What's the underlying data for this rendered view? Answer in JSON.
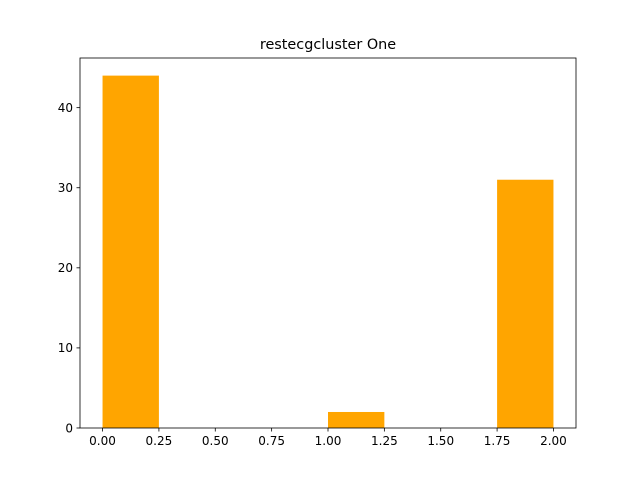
{
  "chart_data": {
    "type": "bar",
    "title": "restecgcluster One",
    "xlabel": "",
    "ylabel": "",
    "bins": [
      {
        "start": 0.0,
        "end": 0.25,
        "count": 44
      },
      {
        "start": 0.25,
        "end": 0.5,
        "count": 0
      },
      {
        "start": 0.5,
        "end": 0.75,
        "count": 0
      },
      {
        "start": 0.75,
        "end": 1.0,
        "count": 0
      },
      {
        "start": 1.0,
        "end": 1.25,
        "count": 2
      },
      {
        "start": 1.25,
        "end": 1.5,
        "count": 0
      },
      {
        "start": 1.5,
        "end": 1.75,
        "count": 0
      },
      {
        "start": 1.75,
        "end": 2.0,
        "count": 31
      }
    ],
    "xlim": [
      -0.1,
      2.1
    ],
    "ylim": [
      0,
      46.2
    ],
    "xticks": [
      "0.00",
      "0.25",
      "0.50",
      "0.75",
      "1.00",
      "1.25",
      "1.50",
      "1.75",
      "2.00"
    ],
    "yticks": [
      "0",
      "10",
      "20",
      "30",
      "40"
    ],
    "grid": false,
    "bar_color": "#ffa500"
  }
}
